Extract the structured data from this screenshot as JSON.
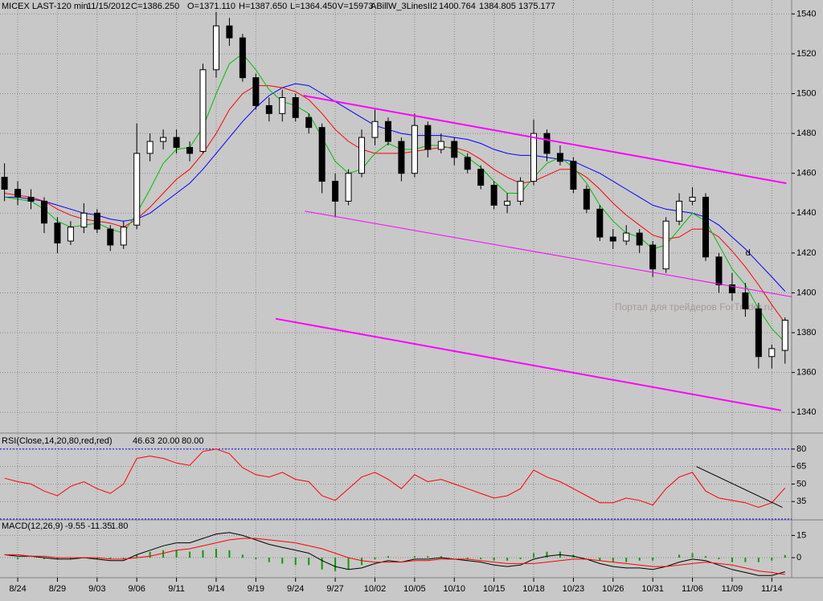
{
  "chart_data": [
    {
      "type": "candlestick",
      "title": "MICEX LAST-120 min",
      "date": "11/15/2012",
      "quote": [
        "C=1386.250",
        "O=1371.110",
        "H=1387.650",
        "L=1364.450",
        "V=15973"
      ],
      "indicator": "ABillW_3LinesII2",
      "xlim": [
        -0.34,
        59.5
      ],
      "ylim": [
        1330,
        1547
      ],
      "yticks": [
        1340,
        1360,
        1380,
        1400,
        1420,
        1440,
        1460,
        1480,
        1500,
        1520,
        1540
      ],
      "grid": true,
      "open": [
        1458,
        1452,
        1448,
        1446,
        1435,
        1426,
        1433,
        1440,
        1432,
        1424,
        1434,
        1470,
        1476,
        1478,
        1473,
        1471,
        1512,
        1534,
        1528,
        1508,
        1494,
        1490,
        1498,
        1488,
        1483,
        1456,
        1446,
        1460,
        1478,
        1486,
        1476,
        1460,
        1484,
        1472,
        1476,
        1468,
        1462,
        1454,
        1444,
        1446,
        1456,
        1480,
        1470,
        1466,
        1452,
        1442,
        1428,
        1426,
        1430,
        1424,
        1412,
        1436,
        1446,
        1448,
        1418,
        1404,
        1400,
        1392,
        1368,
        1371.11
      ],
      "high": [
        1465,
        1456,
        1452,
        1448,
        1438,
        1436,
        1445,
        1442,
        1434,
        1436,
        1485,
        1480,
        1482,
        1482,
        1476,
        1515,
        1541,
        1538,
        1530,
        1510,
        1498,
        1502,
        1500,
        1490,
        1485,
        1460,
        1462,
        1482,
        1492,
        1488,
        1478,
        1490,
        1486,
        1480,
        1478,
        1470,
        1464,
        1456,
        1450,
        1458,
        1487,
        1482,
        1474,
        1468,
        1454,
        1444,
        1432,
        1434,
        1432,
        1426,
        1438,
        1450,
        1453,
        1450,
        1420,
        1410,
        1405,
        1395,
        1374,
        1387.65
      ],
      "low": [
        1446,
        1444,
        1442,
        1430,
        1420,
        1424,
        1430,
        1430,
        1421,
        1422,
        1432,
        1466,
        1472,
        1470,
        1466,
        1470,
        1508,
        1524,
        1506,
        1492,
        1486,
        1486,
        1486,
        1480,
        1450,
        1438,
        1444,
        1458,
        1474,
        1474,
        1456,
        1458,
        1468,
        1470,
        1464,
        1460,
        1452,
        1442,
        1440,
        1444,
        1454,
        1466,
        1464,
        1450,
        1440,
        1426,
        1422,
        1424,
        1420,
        1408,
        1410,
        1434,
        1444,
        1416,
        1400,
        1396,
        1388,
        1362,
        1362,
        1364.45
      ],
      "close": [
        1452,
        1448,
        1446,
        1435,
        1425,
        1433,
        1440,
        1432,
        1424,
        1433,
        1470,
        1476,
        1478,
        1473,
        1470,
        1512,
        1534,
        1528,
        1508,
        1494,
        1490,
        1498,
        1488,
        1483,
        1456,
        1446,
        1460,
        1478,
        1486,
        1476,
        1460,
        1484,
        1472,
        1476,
        1468,
        1462,
        1454,
        1444,
        1446,
        1456,
        1480,
        1470,
        1466,
        1452,
        1442,
        1428,
        1426,
        1430,
        1424,
        1412,
        1436,
        1446,
        1448,
        1418,
        1404,
        1400,
        1392,
        1368,
        1372,
        1386.25
      ],
      "series": [
        {
          "color": "#0000ff",
          "values": [
            1448,
            1448,
            1447,
            1446,
            1444,
            1442,
            1440,
            1439,
            1437,
            1436,
            1437,
            1440,
            1445,
            1450,
            1455,
            1462,
            1470,
            1478,
            1486,
            1493,
            1499,
            1503,
            1505,
            1504,
            1500,
            1496,
            1492,
            1488,
            1484,
            1482,
            1480,
            1479,
            1479,
            1479,
            1478,
            1477,
            1475,
            1472,
            1470,
            1469,
            1469,
            1468,
            1467,
            1466,
            1463,
            1460,
            1456,
            1452,
            1448,
            1444,
            1442,
            1441,
            1440,
            1438,
            1434,
            1428,
            1422,
            1415,
            1408,
            1400.764
          ]
        },
        {
          "color": "#ff0000",
          "values": [
            1450,
            1449,
            1448,
            1446,
            1442,
            1439,
            1437,
            1436,
            1435,
            1433,
            1437,
            1443,
            1450,
            1457,
            1462,
            1470,
            1480,
            1492,
            1500,
            1504,
            1504,
            1503,
            1501,
            1497,
            1490,
            1482,
            1476,
            1472,
            1470,
            1470,
            1470,
            1471,
            1472,
            1473,
            1473,
            1471,
            1467,
            1462,
            1458,
            1455,
            1456,
            1459,
            1462,
            1462,
            1458,
            1452,
            1445,
            1439,
            1434,
            1429,
            1427,
            1428,
            1432,
            1432,
            1428,
            1421,
            1413,
            1404,
            1394,
            1384.805
          ]
        },
        {
          "color": "#00c000",
          "values": [
            1448,
            1447,
            1446,
            1442,
            1436,
            1433,
            1434,
            1435,
            1432,
            1430,
            1440,
            1452,
            1465,
            1472,
            1473,
            1483,
            1500,
            1515,
            1520,
            1512,
            1502,
            1496,
            1494,
            1490,
            1478,
            1466,
            1460,
            1462,
            1470,
            1475,
            1472,
            1472,
            1474,
            1474,
            1472,
            1468,
            1463,
            1456,
            1450,
            1450,
            1458,
            1465,
            1468,
            1463,
            1455,
            1444,
            1436,
            1430,
            1428,
            1422,
            1424,
            1432,
            1440,
            1436,
            1424,
            1412,
            1404,
            1392,
            1382,
            1375.177
          ]
        }
      ],
      "trendlines": [
        {
          "color": "#ff00ff",
          "width": 2,
          "x": [
            22.6,
            59.1
          ],
          "y": [
            1499,
            1455
          ]
        },
        {
          "color": "#ff00ff",
          "width": 1,
          "x": [
            22.7,
            59.5
          ],
          "y": [
            1441,
            1398
          ]
        },
        {
          "color": "#ff00ff",
          "width": 2,
          "x": [
            20.5,
            58.7
          ],
          "y": [
            1387,
            1341
          ]
        }
      ],
      "annotations": [
        {
          "text": "d",
          "color": "#008000",
          "x": 56.2,
          "y": 1420
        }
      ]
    },
    {
      "type": "line",
      "title": "RSI(Close,14,20,80,red,red)",
      "xlim": [
        -0.34,
        59.5
      ],
      "ylim": [
        20,
        93
      ],
      "yticks": [
        35,
        50,
        65,
        80
      ],
      "grid": true,
      "color": "#ff0000",
      "values": [
        55,
        52,
        50,
        44,
        40,
        48,
        52,
        46,
        42,
        50,
        72,
        74,
        72,
        68,
        66,
        78,
        80,
        76,
        64,
        58,
        56,
        60,
        54,
        52,
        40,
        36,
        46,
        56,
        60,
        54,
        46,
        58,
        52,
        54,
        50,
        46,
        42,
        38,
        40,
        46,
        62,
        56,
        52,
        46,
        40,
        34,
        34,
        38,
        36,
        32,
        46,
        56,
        60,
        44,
        38,
        36,
        34,
        30,
        34,
        46.63
      ],
      "levels": [
        {
          "value": 20,
          "label": "20.00"
        },
        {
          "value": 80,
          "label": "80.00"
        }
      ],
      "level_color": "#0000ff",
      "trendlines": [
        {
          "color": "#000000",
          "width": 1,
          "x": [
            52.3,
            58.8
          ],
          "y": [
            65,
            30
          ]
        }
      ]
    },
    {
      "type": "macd",
      "title": "MACD(12,26,9)",
      "xlim": [
        -0.34,
        59.5
      ],
      "ylim": [
        -13,
        25
      ],
      "yticks": [
        0,
        15
      ],
      "grid": true,
      "categories": [
        null,
        "8/24",
        null,
        null,
        "8/29",
        null,
        null,
        "9/03",
        null,
        null,
        "9/06",
        null,
        null,
        "9/11",
        null,
        null,
        "9/14",
        null,
        null,
        "9/19",
        null,
        null,
        "9/24",
        null,
        null,
        "9/27",
        null,
        null,
        "10/02",
        null,
        null,
        "10/05",
        null,
        null,
        "10/10",
        null,
        null,
        "10/15",
        null,
        null,
        "10/18",
        null,
        null,
        "10/23",
        null,
        null,
        "10/26",
        null,
        null,
        "10/31",
        null,
        null,
        "11/06",
        null,
        null,
        "11/09",
        null,
        null,
        "11/14",
        null
      ],
      "series": [
        {
          "color": "#000000",
          "values": [
            2,
            1,
            1,
            0,
            -1,
            -1,
            0,
            -1,
            -2,
            -2,
            2,
            5,
            8,
            10,
            10,
            13,
            16,
            17,
            15,
            12,
            9,
            7,
            5,
            3,
            -2,
            -6,
            -8,
            -7,
            -4,
            -2,
            -3,
            -1,
            -1,
            0,
            -1,
            -2,
            -3,
            -5,
            -6,
            -5,
            -1,
            1,
            2,
            1,
            -1,
            -4,
            -6,
            -7,
            -7,
            -8,
            -6,
            -3,
            -1,
            -2,
            -5,
            -8,
            -10,
            -12,
            -12,
            -9.55
          ]
        },
        {
          "color": "#ff0000",
          "values": [
            2,
            2,
            1,
            1,
            0,
            0,
            0,
            0,
            -1,
            -1,
            0,
            1,
            3,
            5,
            6,
            8,
            10,
            12,
            13,
            13,
            12,
            11,
            10,
            8,
            6,
            3,
            0,
            -2,
            -3,
            -3,
            -3,
            -2,
            -2,
            -1,
            -1,
            -1,
            -2,
            -3,
            -4,
            -4,
            -4,
            -3,
            -2,
            -1,
            -1,
            -2,
            -3,
            -4,
            -5,
            -6,
            -6,
            -5,
            -4,
            -3,
            -4,
            -5,
            -7,
            -9,
            -10,
            -11.35
          ]
        }
      ],
      "histogram": {
        "color": "#00a000",
        "last_label": "1.80",
        "values": [
          0,
          -1,
          0,
          -1,
          -1,
          -1,
          0,
          -1,
          -1,
          -1,
          2,
          4,
          5,
          5,
          4,
          5,
          6,
          5,
          2,
          -1,
          -3,
          -4,
          -5,
          -5,
          -8,
          -9,
          -8,
          -5,
          -1,
          1,
          0,
          1,
          1,
          1,
          0,
          -1,
          -1,
          -2,
          -2,
          -1,
          3,
          4,
          4,
          2,
          0,
          -2,
          -3,
          -3,
          -2,
          -2,
          0,
          2,
          3,
          1,
          -1,
          -3,
          -3,
          -3,
          -2,
          1.8
        ]
      }
    }
  ],
  "watermark": "Портал для трейдеров ForTrader.ru"
}
